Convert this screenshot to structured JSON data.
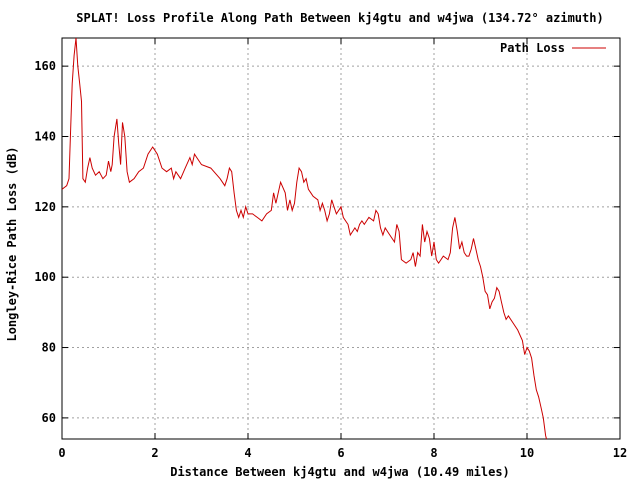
{
  "chart_data": {
    "type": "line",
    "title": "SPLAT! Loss Profile Along Path Between kj4gtu and w4jwa (134.72° azimuth)",
    "xlabel": "Distance Between kj4gtu and w4jwa (10.49 miles)",
    "ylabel": "Longley-Rice Path Loss (dB)",
    "xlim": [
      0,
      12
    ],
    "ylim": [
      54,
      168
    ],
    "xticks": [
      0,
      2,
      4,
      6,
      8,
      10,
      12
    ],
    "yticks": [
      60,
      80,
      100,
      120,
      140,
      160
    ],
    "grid": true,
    "legend": "top-right",
    "series": [
      {
        "name": "Path Loss",
        "color": "#cc0000",
        "points": [
          [
            0.0,
            125
          ],
          [
            0.05,
            125.5
          ],
          [
            0.1,
            126
          ],
          [
            0.15,
            128
          ],
          [
            0.18,
            140
          ],
          [
            0.22,
            155
          ],
          [
            0.26,
            163
          ],
          [
            0.3,
            168
          ],
          [
            0.34,
            160
          ],
          [
            0.38,
            155
          ],
          [
            0.42,
            150
          ],
          [
            0.45,
            128
          ],
          [
            0.5,
            127
          ],
          [
            0.55,
            131
          ],
          [
            0.6,
            134
          ],
          [
            0.65,
            131
          ],
          [
            0.72,
            129
          ],
          [
            0.8,
            130
          ],
          [
            0.88,
            128
          ],
          [
            0.95,
            129
          ],
          [
            1.0,
            133
          ],
          [
            1.05,
            130
          ],
          [
            1.08,
            132
          ],
          [
            1.12,
            140
          ],
          [
            1.18,
            145
          ],
          [
            1.22,
            138
          ],
          [
            1.26,
            132
          ],
          [
            1.3,
            144
          ],
          [
            1.35,
            140
          ],
          [
            1.4,
            130
          ],
          [
            1.45,
            127
          ],
          [
            1.55,
            128
          ],
          [
            1.65,
            130
          ],
          [
            1.75,
            131
          ],
          [
            1.85,
            135
          ],
          [
            1.95,
            137
          ],
          [
            2.05,
            135
          ],
          [
            2.15,
            131
          ],
          [
            2.25,
            130
          ],
          [
            2.35,
            131
          ],
          [
            2.4,
            128
          ],
          [
            2.45,
            130
          ],
          [
            2.55,
            128
          ],
          [
            2.65,
            131
          ],
          [
            2.75,
            134
          ],
          [
            2.8,
            132
          ],
          [
            2.85,
            135
          ],
          [
            2.9,
            134
          ],
          [
            3.0,
            132
          ],
          [
            3.2,
            131
          ],
          [
            3.4,
            128
          ],
          [
            3.5,
            126
          ],
          [
            3.55,
            128
          ],
          [
            3.6,
            131
          ],
          [
            3.65,
            130
          ],
          [
            3.7,
            124
          ],
          [
            3.75,
            119
          ],
          [
            3.8,
            117
          ],
          [
            3.85,
            119
          ],
          [
            3.9,
            117
          ],
          [
            3.95,
            120
          ],
          [
            4.0,
            118
          ],
          [
            4.1,
            118
          ],
          [
            4.2,
            117
          ],
          [
            4.3,
            116
          ],
          [
            4.4,
            118
          ],
          [
            4.5,
            119
          ],
          [
            4.55,
            124
          ],
          [
            4.6,
            121
          ],
          [
            4.7,
            127
          ],
          [
            4.8,
            124
          ],
          [
            4.85,
            119
          ],
          [
            4.9,
            122
          ],
          [
            4.95,
            119
          ],
          [
            5.0,
            121
          ],
          [
            5.05,
            127
          ],
          [
            5.1,
            131
          ],
          [
            5.15,
            130
          ],
          [
            5.2,
            127
          ],
          [
            5.25,
            128
          ],
          [
            5.3,
            125
          ],
          [
            5.35,
            124
          ],
          [
            5.4,
            123
          ],
          [
            5.5,
            122
          ],
          [
            5.55,
            119
          ],
          [
            5.6,
            121
          ],
          [
            5.65,
            119
          ],
          [
            5.7,
            116
          ],
          [
            5.75,
            118
          ],
          [
            5.8,
            122
          ],
          [
            5.85,
            120
          ],
          [
            5.9,
            118
          ],
          [
            6.0,
            120
          ],
          [
            6.05,
            117
          ],
          [
            6.1,
            116
          ],
          [
            6.15,
            115
          ],
          [
            6.2,
            112
          ],
          [
            6.25,
            113
          ],
          [
            6.3,
            114
          ],
          [
            6.35,
            113
          ],
          [
            6.4,
            115
          ],
          [
            6.45,
            116
          ],
          [
            6.5,
            115
          ],
          [
            6.55,
            116
          ],
          [
            6.6,
            117
          ],
          [
            6.7,
            116
          ],
          [
            6.75,
            119
          ],
          [
            6.8,
            118
          ],
          [
            6.85,
            114
          ],
          [
            6.9,
            112
          ],
          [
            6.95,
            114
          ],
          [
            7.0,
            113
          ],
          [
            7.05,
            112
          ],
          [
            7.15,
            110
          ],
          [
            7.2,
            115
          ],
          [
            7.25,
            113
          ],
          [
            7.3,
            105
          ],
          [
            7.4,
            104
          ],
          [
            7.5,
            105
          ],
          [
            7.55,
            107
          ],
          [
            7.6,
            103
          ],
          [
            7.65,
            107
          ],
          [
            7.7,
            106
          ],
          [
            7.75,
            115
          ],
          [
            7.8,
            110
          ],
          [
            7.85,
            113
          ],
          [
            7.9,
            111
          ],
          [
            7.95,
            106
          ],
          [
            8.0,
            110
          ],
          [
            8.05,
            105
          ],
          [
            8.1,
            104
          ],
          [
            8.15,
            105
          ],
          [
            8.2,
            106
          ],
          [
            8.3,
            105
          ],
          [
            8.35,
            107
          ],
          [
            8.4,
            114
          ],
          [
            8.45,
            117
          ],
          [
            8.5,
            113
          ],
          [
            8.55,
            108
          ],
          [
            8.6,
            110
          ],
          [
            8.65,
            107
          ],
          [
            8.7,
            106
          ],
          [
            8.75,
            106
          ],
          [
            8.8,
            108
          ],
          [
            8.85,
            111
          ],
          [
            8.9,
            108
          ],
          [
            8.95,
            105
          ],
          [
            9.0,
            103
          ],
          [
            9.05,
            100
          ],
          [
            9.1,
            96
          ],
          [
            9.15,
            95
          ],
          [
            9.2,
            91
          ],
          [
            9.25,
            93
          ],
          [
            9.3,
            94
          ],
          [
            9.35,
            97
          ],
          [
            9.4,
            96
          ],
          [
            9.45,
            93
          ],
          [
            9.5,
            90
          ],
          [
            9.55,
            88
          ],
          [
            9.6,
            89
          ],
          [
            9.7,
            87
          ],
          [
            9.8,
            85
          ],
          [
            9.9,
            82
          ],
          [
            9.95,
            78
          ],
          [
            10.0,
            80
          ],
          [
            10.05,
            79
          ],
          [
            10.1,
            77
          ],
          [
            10.15,
            72
          ],
          [
            10.2,
            68
          ],
          [
            10.25,
            66
          ],
          [
            10.3,
            63
          ],
          [
            10.35,
            60
          ],
          [
            10.4,
            55
          ],
          [
            10.42,
            54
          ]
        ]
      }
    ]
  }
}
